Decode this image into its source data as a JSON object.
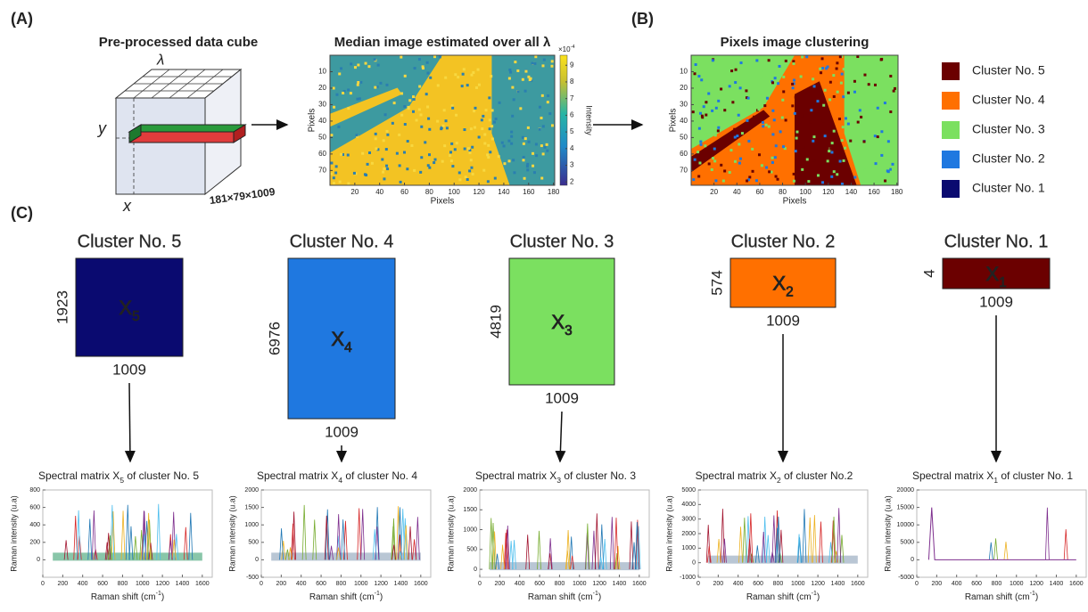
{
  "panel_labels": [
    "(A)",
    "(B)",
    "(C)"
  ],
  "cube": {
    "title": "Pre-processed data cube",
    "lambda": "λ",
    "y": "y",
    "x": "x",
    "dims": "181×79×1009"
  },
  "median_image": {
    "title": "Median image estimated over all λ",
    "xlabel": "Pixels",
    "ylabel": "Pixels",
    "xlim": [
      0,
      181
    ],
    "ylim": [
      0,
      79
    ],
    "xticks": [
      20,
      40,
      60,
      80,
      100,
      120,
      140,
      160,
      180
    ],
    "yticks": [
      10,
      20,
      30,
      40,
      50,
      60,
      70
    ],
    "colorbar_label": "Intensity",
    "colorbar_lim": [
      1.8,
      9.6
    ],
    "colorbar_ticks": [
      2,
      3,
      4,
      5,
      6,
      7,
      8,
      9
    ],
    "colorbar_exponent_base": "×10",
    "colorbar_exponent_power": "-4"
  },
  "cluster_image": {
    "title": "Pixels image clustering",
    "xlabel": "Pixels",
    "ylabel": "Pixels",
    "xlim": [
      0,
      181
    ],
    "ylim": [
      0,
      79
    ],
    "xticks": [
      20,
      40,
      60,
      80,
      100,
      120,
      140,
      160,
      180
    ],
    "yticks": [
      10,
      20,
      30,
      40,
      50,
      60,
      70
    ]
  },
  "legend": [
    {
      "name": "Cluster No. 5",
      "color": "#6b0000"
    },
    {
      "name": "Cluster No. 4",
      "color": "#ff7000"
    },
    {
      "name": "Cluster No. 3",
      "color": "#7be060"
    },
    {
      "name": "Cluster No. 2",
      "color": "#1f78e0"
    },
    {
      "name": "Cluster No. 1",
      "color": "#0a0a70"
    }
  ],
  "clusters": [
    {
      "name": "Cluster No. 5",
      "rows": 1923,
      "cols": 1009,
      "matrix": "X",
      "subscript": "5",
      "plot": {
        "title_prefix": "Spectral matrix X",
        "title_sub": "5",
        "title_suffix": " of cluster No. 5",
        "ylim": [
          -200,
          800
        ],
        "yticks": [
          0,
          200,
          400,
          600,
          800
        ]
      }
    },
    {
      "name": "Cluster No. 4",
      "rows": 6976,
      "cols": 1009,
      "matrix": "X",
      "subscript": "4",
      "plot": {
        "title_prefix": "Spectral matrix X",
        "title_sub": "4",
        "title_suffix": " of cluster No. 4",
        "ylim": [
          -500,
          2000
        ],
        "yticks": [
          -500,
          0,
          500,
          1000,
          1500,
          2000
        ]
      }
    },
    {
      "name": "Cluster No. 3",
      "rows": 4819,
      "cols": 1009,
      "matrix": "X",
      "subscript": "3",
      "plot": {
        "title_prefix": "Spectral matrix X",
        "title_sub": "3",
        "title_suffix": " of cluster No. 3",
        "ylim": [
          -200,
          2000
        ],
        "yticks": [
          0,
          500,
          1000,
          1500,
          2000
        ]
      }
    },
    {
      "name": "Cluster No. 2",
      "rows": 574,
      "cols": 1009,
      "matrix": "X",
      "subscript": "2",
      "plot": {
        "title_prefix": "Spectral matrix X",
        "title_sub": "2",
        "title_suffix": " of cluster No.2",
        "ylim": [
          -1000,
          5000
        ],
        "yticks": [
          -1000,
          0,
          1000,
          2000,
          3000,
          4000,
          5000
        ]
      }
    },
    {
      "name": "Cluster No. 1",
      "rows": 4,
      "cols": 1009,
      "matrix": "X",
      "subscript": "1",
      "plot": {
        "title_prefix": "Spectral matrix X",
        "title_sub": "1",
        "title_suffix": " of cluster No. 1",
        "ylim": [
          -5000,
          20000
        ],
        "yticks": [
          -5000,
          0,
          5000,
          10000,
          15000,
          20000
        ]
      }
    }
  ],
  "spectra_axes": {
    "xlabel_prefix": "Raman shift (cm",
    "xlabel_power": "-1",
    "xlabel_suffix": ")",
    "ylabel": "Raman intensity (u.a)",
    "xlim": [
      0,
      1700
    ],
    "xticks": [
      0,
      200,
      400,
      600,
      800,
      1000,
      1200,
      1400,
      1600
    ]
  }
}
